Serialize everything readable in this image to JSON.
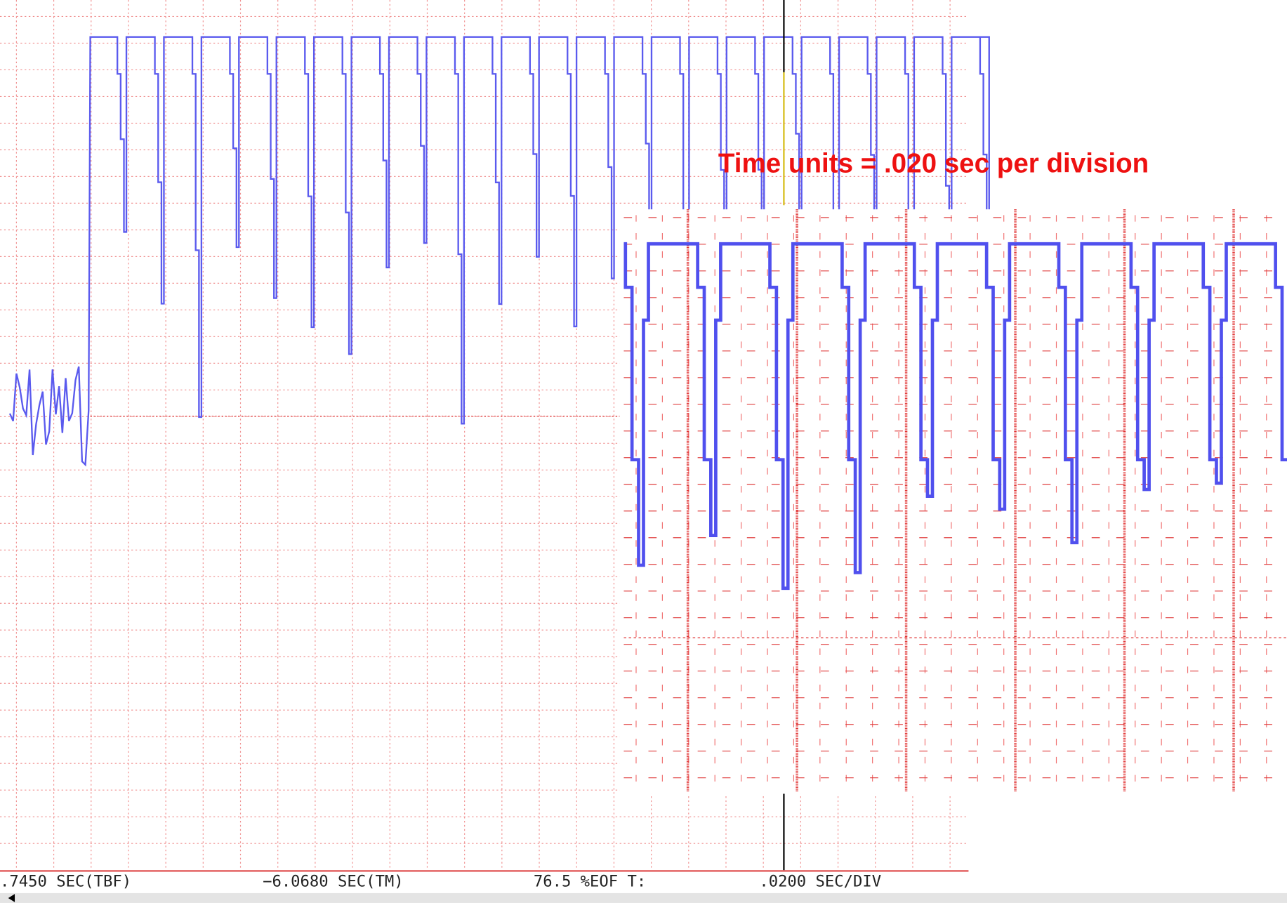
{
  "annotation": "Time units = .020 sec per division",
  "status": {
    "tbf": ".7450 SEC(TBF)",
    "tm": "−6.0680 SEC(TM)",
    "eof": "76.5 %EOF T:",
    "div": ".0200 SEC/DIV"
  }
}
